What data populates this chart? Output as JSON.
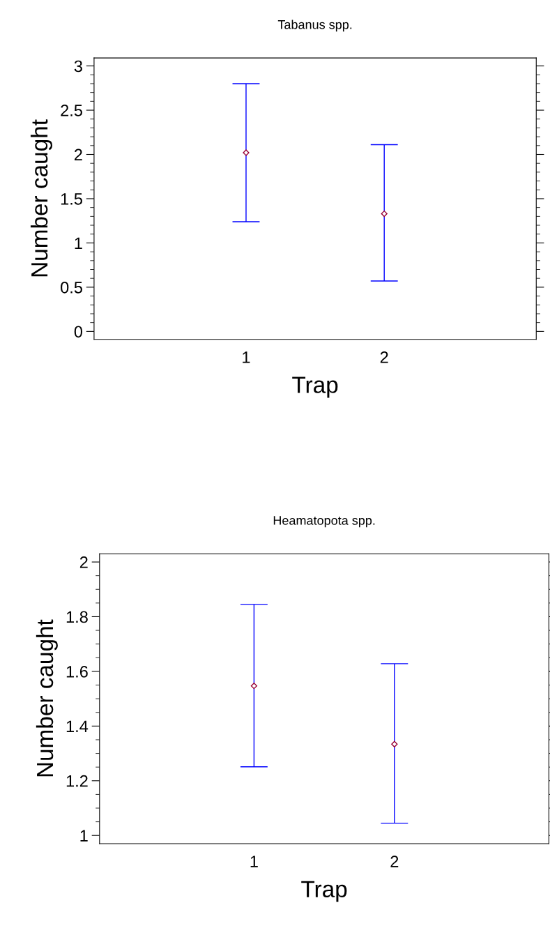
{
  "chart_data": [
    {
      "type": "scatter",
      "title": "Tabanus spp.",
      "xlabel": "Trap",
      "ylabel": "Number caught",
      "categories": [
        "1",
        "2"
      ],
      "ylim": [
        -0.09,
        3.09
      ],
      "yticks": [
        0,
        0.5,
        1,
        1.5,
        2,
        2.5,
        3
      ],
      "marker": "diamond",
      "grid": false,
      "legend": false,
      "series": [
        {
          "color": "#990033",
          "values": [
            2.02,
            1.33
          ],
          "errors": [
            [
              1.24,
              2.8
            ],
            [
              0.57,
              2.11
            ]
          ]
        }
      ]
    },
    {
      "type": "scatter",
      "title": "Heamatopota spp.",
      "xlabel": "Trap",
      "ylabel": "Number caught",
      "categories": [
        "1",
        "2"
      ],
      "ylim": [
        0.97,
        2.03
      ],
      "yticks": [
        1,
        1.2,
        1.4,
        1.6,
        1.8,
        2
      ],
      "marker": "diamond",
      "grid": false,
      "legend": false,
      "series": [
        {
          "color": "#990033",
          "values": [
            1.547,
            1.334
          ],
          "errors": [
            [
              1.251,
              1.845
            ],
            [
              1.045,
              1.628
            ]
          ]
        }
      ]
    }
  ]
}
